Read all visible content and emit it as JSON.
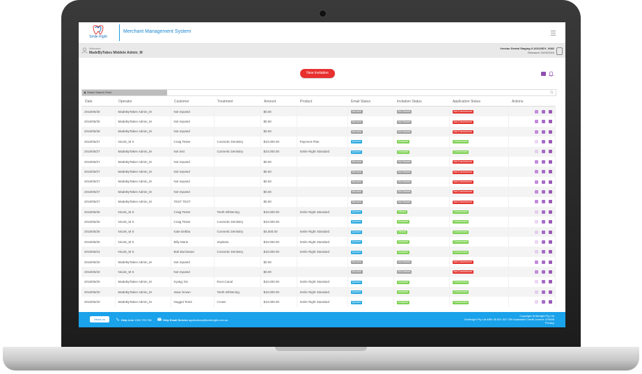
{
  "app": {
    "logo_text": "Smile Right",
    "title": "Merchant Management System"
  },
  "welcome": {
    "label": "Welcome",
    "name": "MadeByTakes Middele Admin_M",
    "version_line1": "Version Dental Staging 0.160115DY_6082",
    "version_line2": "Released 13/04/2016"
  },
  "actions": {
    "new_invitation": "New Invitation"
  },
  "search": {
    "select_label": "Select Search Field",
    "placeholder": ""
  },
  "table": {
    "headers": [
      "Date",
      "Operator",
      "Customer",
      "Treatment",
      "Amount",
      "Product",
      "Email Status",
      "Invitation Status",
      "Application Status",
      "Actions"
    ],
    "rows": [
      {
        "date": "2016/05/30",
        "operator": "MadeByTakes Admin_M",
        "customer": "Not Inputed",
        "treatment": "",
        "amount": "$0.00",
        "product": "",
        "email": "Not sent",
        "email_c": "gray",
        "inv": "Not Viewed",
        "inv_c": "gray",
        "app": "Not Commenced",
        "app_c": "red",
        "dim": false
      },
      {
        "date": "2016/05/30",
        "operator": "MadeByTakes Admin_M",
        "customer": "Not Inputed",
        "treatment": "",
        "amount": "$0.00",
        "product": "",
        "email": "Not sent",
        "email_c": "gray",
        "inv": "Not Viewed",
        "inv_c": "gray",
        "app": "Not Commenced",
        "app_c": "red",
        "dim": false
      },
      {
        "date": "2016/05/28",
        "operator": "MadeByTakes Admin_M",
        "customer": "Not Inputed",
        "treatment": "",
        "amount": "$0.00",
        "product": "",
        "email": "Not sent",
        "email_c": "gray",
        "inv": "Not Viewed",
        "inv_c": "gray",
        "app": "Not Commenced",
        "app_c": "red",
        "dim": false
      },
      {
        "date": "2016/05/27",
        "operator": "Nicole_M S",
        "customer": "Craig Tester",
        "treatment": "Cosmetic Dentistry",
        "amount": "$10,000.00",
        "product": "Payment Plan",
        "email": "Queued",
        "email_c": "blue",
        "inv": "Accepted",
        "inv_c": "green",
        "app": "Commenced",
        "app_c": "green",
        "dim": true
      },
      {
        "date": "2016/05/27",
        "operator": "MadeByTakes Admin_M",
        "customer": "Not test",
        "treatment": "Cosmetic Dentistry",
        "amount": "$10,000.00",
        "product": "Smile Right Standard",
        "email": "Queued",
        "email_c": "blue",
        "inv": "Accepted",
        "inv_c": "green",
        "app": "Commenced",
        "app_c": "green",
        "dim": true
      },
      {
        "date": "2016/05/27",
        "operator": "MadeByTakes Admin_M",
        "customer": "Not Inputed",
        "treatment": "",
        "amount": "$0.00",
        "product": "",
        "email": "Not sent",
        "email_c": "gray",
        "inv": "Not Viewed",
        "inv_c": "gray",
        "app": "Not Commenced",
        "app_c": "red",
        "dim": false
      },
      {
        "date": "2016/05/27",
        "operator": "MadeByTakes Admin_M",
        "customer": "Not Inputed",
        "treatment": "",
        "amount": "$0.00",
        "product": "",
        "email": "Not sent",
        "email_c": "gray",
        "inv": "Not Viewed",
        "inv_c": "gray",
        "app": "Not Commenced",
        "app_c": "red",
        "dim": false
      },
      {
        "date": "2016/05/27",
        "operator": "MadeByTakes Admin_M",
        "customer": "Not Inputed",
        "treatment": "",
        "amount": "$0.00",
        "product": "",
        "email": "Not sent",
        "email_c": "gray",
        "inv": "Not Viewed",
        "inv_c": "gray",
        "app": "Not Commenced",
        "app_c": "red",
        "dim": false
      },
      {
        "date": "2016/05/27",
        "operator": "MadeByTakes Admin_M",
        "customer": "Not Inputed",
        "treatment": "",
        "amount": "$0.00",
        "product": "",
        "email": "Not sent",
        "email_c": "gray",
        "inv": "Not Viewed",
        "inv_c": "gray",
        "app": "Not Commenced",
        "app_c": "red",
        "dim": false
      },
      {
        "date": "2016/05/27",
        "operator": "MadeByTakes Admin_M",
        "customer": "TEST TEST",
        "treatment": "",
        "amount": "$0.00",
        "product": "",
        "email": "Not sent",
        "email_c": "gray",
        "inv": "Not Viewed",
        "inv_c": "gray",
        "app": "Not Commenced",
        "app_c": "red",
        "dim": false
      },
      {
        "date": "2016/05/26",
        "operator": "Nicole_M S",
        "customer": "Craig Tester",
        "treatment": "Teeth Whitening",
        "amount": "$10,000.00",
        "product": "Smile Right Standard",
        "email": "Queued",
        "email_c": "blue",
        "inv": "Viewed",
        "inv_c": "green",
        "app": "Commenced",
        "app_c": "green",
        "dim": true
      },
      {
        "date": "2016/05/26",
        "operator": "Nicole_M S",
        "customer": "Craig Tester",
        "treatment": "Cosmetic Dentistry",
        "amount": "$10,000.00",
        "product": "",
        "email": "Queued",
        "email_c": "blue",
        "inv": "Accepted",
        "inv_c": "green",
        "app": "Commenced",
        "app_c": "green",
        "dim": true
      },
      {
        "date": "2016/05/26",
        "operator": "Nicole_M S",
        "customer": "Kate Debba",
        "treatment": "Cosmetic Dentistry",
        "amount": "$4,500.00",
        "product": "Smile Right Standard",
        "email": "Queued",
        "email_c": "blue",
        "inv": "Viewed",
        "inv_c": "green",
        "app": "Commenced",
        "app_c": "green",
        "dim": true
      },
      {
        "date": "2016/05/25",
        "operator": "Nicole_M S",
        "customer": "Billy Marie",
        "treatment": "Implants",
        "amount": "$10,000.00",
        "product": "Smile Right Standard",
        "email": "Queued",
        "email_c": "blue",
        "inv": "Accepted",
        "inv_c": "green",
        "app": "Commenced",
        "app_c": "green",
        "dim": true
      },
      {
        "date": "2016/05/24",
        "operator": "Nicole_M S",
        "customer": "Bob Buchanan",
        "treatment": "Cosmetic Dentistry",
        "amount": "$10,000.00",
        "product": "Smile Right Standard",
        "email": "Queued",
        "email_c": "blue",
        "inv": "Accepted",
        "inv_c": "green",
        "app": "Commenced",
        "app_c": "green",
        "dim": true
      },
      {
        "date": "2016/05/20",
        "operator": "MadeByTakes Admin_M",
        "customer": "Not Inputed",
        "treatment": "",
        "amount": "$0.00",
        "product": "",
        "email": "Not sent",
        "email_c": "gray",
        "inv": "Not Viewed",
        "inv_c": "gray",
        "app": "Not Commenced",
        "app_c": "red",
        "dim": false
      },
      {
        "date": "2016/05/20",
        "operator": "Nicole_M S",
        "customer": "Not Inputed",
        "treatment": "",
        "amount": "$0.00",
        "product": "",
        "email": "Not sent",
        "email_c": "gray",
        "inv": "Not Viewed",
        "inv_c": "gray",
        "app": "Not Commenced",
        "app_c": "red",
        "dim": false
      },
      {
        "date": "2016/05/20",
        "operator": "MadeByTakes Admin_M",
        "customer": "Kyr&g; klo",
        "treatment": "Root Canal",
        "amount": "$10,000.00",
        "product": "Smile Right Standard",
        "email": "Queued",
        "email_c": "blue",
        "inv": "Accepted",
        "inv_c": "green",
        "app": "Commenced",
        "app_c": "green",
        "dim": true
      },
      {
        "date": "2016/05/20",
        "operator": "MadeByTakes Admin_M",
        "customer": "Isaac brown",
        "treatment": "Teeth Whitening",
        "amount": "$10,000.00",
        "product": "Smile Right Standard",
        "email": "Queued",
        "email_c": "blue",
        "inv": "Accepted",
        "inv_c": "green",
        "app": "Commenced",
        "app_c": "green",
        "dim": true
      },
      {
        "date": "2016/05/20",
        "operator": "MadeByTakes Admin_M",
        "customer": "Nugget Test2",
        "treatment": "Crown",
        "amount": "$10,000.00",
        "product": "Smile Right Standard",
        "email": "Queued",
        "email_c": "blue",
        "inv": "Accepted",
        "inv_c": "green",
        "app": "Commenced",
        "app_c": "green",
        "dim": true
      }
    ]
  },
  "footer": {
    "about": "About us",
    "help_line_label": "Help Line",
    "help_line_number": "1300 793 798",
    "help_email_label": "Help Email Service",
    "help_email": "applications@smileright.com.au",
    "copy_line1": "Copyright Smileright Pty Ltd",
    "copy_line2": "Smileright Pty Ltd ABN 36 601 537 059 Australian Credit Licence 475696",
    "copy_line3": "Privacy"
  },
  "colors": {
    "accent": "#1aa2ea",
    "primary_button": "#e8302f",
    "badge_gray": "#9e9e9e",
    "badge_blue": "#29a8e0",
    "badge_green": "#7dd152",
    "badge_red": "#e33530"
  },
  "icons": [
    "tooth-logo-icon",
    "menu-icon",
    "user-icon",
    "database-icon",
    "grid-icon",
    "bell-icon",
    "search-icon",
    "trash-icon",
    "chart-icon",
    "mail-icon",
    "phone-icon",
    "envelope-icon"
  ]
}
